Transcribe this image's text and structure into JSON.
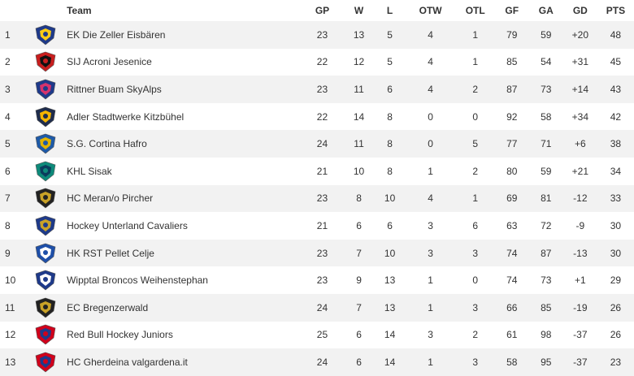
{
  "headers": {
    "rank": "",
    "logo": "",
    "team": "Team",
    "gp": "GP",
    "w": "W",
    "l": "L",
    "otw": "OTW",
    "otl": "OTL",
    "gf": "GF",
    "ga": "GA",
    "gd": "GD",
    "pts": "PTS"
  },
  "rows": [
    {
      "rank": "1",
      "team": "EK Die Zeller Eisbären",
      "gp": "23",
      "w": "13",
      "l": "5",
      "otw": "4",
      "otl": "1",
      "gf": "79",
      "ga": "59",
      "gd": "+20",
      "pts": "48",
      "logo_icon": "ekz-bear-logo-icon",
      "colors": [
        "#1e3a8a",
        "#facc15"
      ]
    },
    {
      "rank": "2",
      "team": "SIJ Acroni Jesenice",
      "gp": "22",
      "w": "12",
      "l": "5",
      "otw": "4",
      "otl": "1",
      "gf": "85",
      "ga": "54",
      "gd": "+31",
      "pts": "45",
      "logo_icon": "jesenice-flame-logo-icon",
      "colors": [
        "#c81e1e",
        "#111111"
      ]
    },
    {
      "rank": "3",
      "team": "Rittner Buam SkyAlps",
      "gp": "23",
      "w": "11",
      "l": "6",
      "otw": "4",
      "otl": "2",
      "gf": "87",
      "ga": "73",
      "gd": "+14",
      "pts": "43",
      "logo_icon": "rittner-buam-logo-icon",
      "colors": [
        "#1e3a8a",
        "#d6336c"
      ]
    },
    {
      "rank": "4",
      "team": "Adler Stadtwerke Kitzbühel",
      "gp": "22",
      "w": "14",
      "l": "8",
      "otw": "0",
      "otl": "0",
      "gf": "92",
      "ga": "58",
      "gd": "+34",
      "pts": "42",
      "logo_icon": "eagle-logo-icon",
      "colors": [
        "#1f2d4d",
        "#f5b400"
      ]
    },
    {
      "rank": "5",
      "team": "S.G. Cortina Hafro",
      "gp": "24",
      "w": "11",
      "l": "8",
      "otw": "0",
      "otl": "5",
      "gf": "77",
      "ga": "71",
      "gd": "+6",
      "pts": "38",
      "logo_icon": "cortina-logo-icon",
      "colors": [
        "#1e5aa8",
        "#e2b400"
      ]
    },
    {
      "rank": "6",
      "team": "KHL Sisak",
      "gp": "21",
      "w": "10",
      "l": "8",
      "otw": "1",
      "otl": "2",
      "gf": "80",
      "ga": "59",
      "gd": "+21",
      "pts": "34",
      "logo_icon": "sisak-knight-logo-icon",
      "colors": [
        "#0e8a7a",
        "#0b3c5d"
      ]
    },
    {
      "rank": "7",
      "team": "HC Meran/o Pircher",
      "gp": "23",
      "w": "8",
      "l": "10",
      "otw": "4",
      "otl": "1",
      "gf": "69",
      "ga": "81",
      "gd": "-12",
      "pts": "33",
      "logo_icon": "meran-hcm-logo-icon",
      "colors": [
        "#222222",
        "#c9a227"
      ]
    },
    {
      "rank": "8",
      "team": "Hockey Unterland Cavaliers",
      "gp": "21",
      "w": "6",
      "l": "6",
      "otw": "3",
      "otl": "6",
      "gf": "63",
      "ga": "72",
      "gd": "-9",
      "pts": "30",
      "logo_icon": "cavaliers-shield-logo-icon",
      "colors": [
        "#1e3a8a",
        "#c9a227"
      ]
    },
    {
      "rank": "9",
      "team": "HK RST Pellet Celje",
      "gp": "23",
      "w": "7",
      "l": "10",
      "otw": "3",
      "otl": "3",
      "gf": "74",
      "ga": "87",
      "gd": "-13",
      "pts": "30",
      "logo_icon": "celje-crown-logo-icon",
      "colors": [
        "#1e4fa8",
        "#ffffff"
      ]
    },
    {
      "rank": "10",
      "team": "Wipptal Broncos Weihenstephan",
      "gp": "23",
      "w": "9",
      "l": "13",
      "otw": "1",
      "otl": "0",
      "gf": "74",
      "ga": "73",
      "gd": "+1",
      "pts": "29",
      "logo_icon": "broncos-horse-logo-icon",
      "colors": [
        "#1e3a8a",
        "#ffffff"
      ]
    },
    {
      "rank": "11",
      "team": "EC Bregenzerwald",
      "gp": "24",
      "w": "7",
      "l": "13",
      "otw": "1",
      "otl": "3",
      "gf": "66",
      "ga": "85",
      "gd": "-19",
      "pts": "26",
      "logo_icon": "bregenzerwald-logo-icon",
      "colors": [
        "#222222",
        "#c9a227"
      ]
    },
    {
      "rank": "12",
      "team": "Red Bull Hockey Juniors",
      "gp": "25",
      "w": "6",
      "l": "14",
      "otw": "3",
      "otl": "2",
      "gf": "61",
      "ga": "98",
      "gd": "-37",
      "pts": "26",
      "logo_icon": "red-bull-logo-icon",
      "colors": [
        "#d0021b",
        "#1e3a8a"
      ]
    },
    {
      "rank": "13",
      "team": "HC Gherdeina valgardena.it",
      "gp": "24",
      "w": "6",
      "l": "14",
      "otw": "1",
      "otl": "3",
      "gf": "58",
      "ga": "95",
      "gd": "-37",
      "pts": "23",
      "logo_icon": "gherdeina-logo-icon",
      "colors": [
        "#d0021b",
        "#1e3a8a"
      ]
    }
  ]
}
